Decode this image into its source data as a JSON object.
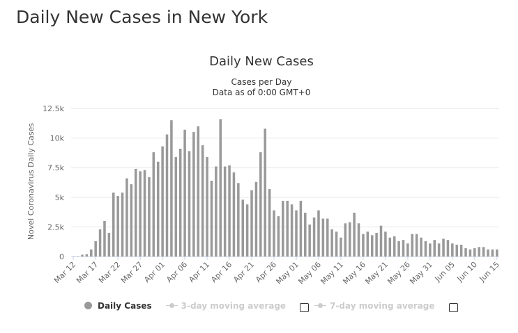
{
  "page": {
    "title": "Daily New Cases in New York"
  },
  "legend": {
    "items": [
      {
        "label": "Daily Cases",
        "active": true
      },
      {
        "label": "3-day moving average",
        "active": false
      },
      {
        "label": "7-day moving average",
        "active": false
      }
    ]
  },
  "colors": {
    "bar": "#999999",
    "grid": "#e6e6e6",
    "legend_inactive": "#cccccc"
  },
  "chart_data": {
    "type": "bar",
    "title": "Daily New Cases",
    "subtitle_lines": [
      "Cases per Day",
      "Data as of 0:00 GMT+0"
    ],
    "ylabel": "Novel Coronavirus Daily Cases",
    "xlabel": "",
    "ylim": [
      0,
      12500
    ],
    "yticks": [
      0,
      2500,
      5000,
      7500,
      10000,
      12500
    ],
    "ytick_labels": [
      "0",
      "2.5k",
      "5k",
      "7.5k",
      "10k",
      "12.5k"
    ],
    "xtick_labels": [
      "Mar 12",
      "Mar 17",
      "Mar 22",
      "Mar 27",
      "Apr 01",
      "Apr 06",
      "Apr 11",
      "Apr 16",
      "Apr 21",
      "Apr 26",
      "May 01",
      "May 06",
      "May 11",
      "May 16",
      "May 21",
      "May 26",
      "May 31",
      "Jun 05",
      "Jun 10",
      "Jun 15"
    ],
    "grid": true,
    "legend_position": "bottom-left",
    "series": [
      {
        "name": "Daily Cases",
        "values": [
          20,
          30,
          150,
          200,
          600,
          1300,
          2300,
          3000,
          2000,
          5400,
          5100,
          5400,
          6600,
          6100,
          7400,
          7200,
          7300,
          6700,
          8800,
          8000,
          9300,
          10300,
          11500,
          8400,
          9100,
          10700,
          8900,
          10500,
          11000,
          9400,
          8400,
          6400,
          7600,
          11600,
          7600,
          7700,
          7100,
          6200,
          4800,
          4400,
          5600,
          6300,
          8800,
          10800,
          5700,
          3900,
          3400,
          4700,
          4700,
          4400,
          3900,
          4700,
          3700,
          2700,
          3300,
          3900,
          3200,
          3200,
          2300,
          2100,
          1600,
          2800,
          2900,
          3700,
          2800,
          1900,
          2100,
          1800,
          2000,
          2600,
          2100,
          1600,
          1700,
          1300,
          1400,
          1100,
          1900,
          1900,
          1600,
          1300,
          1100,
          1400,
          1100,
          1500,
          1400,
          1100,
          1000,
          1000,
          700,
          600,
          700,
          800,
          800,
          600,
          600,
          600
        ]
      }
    ]
  }
}
